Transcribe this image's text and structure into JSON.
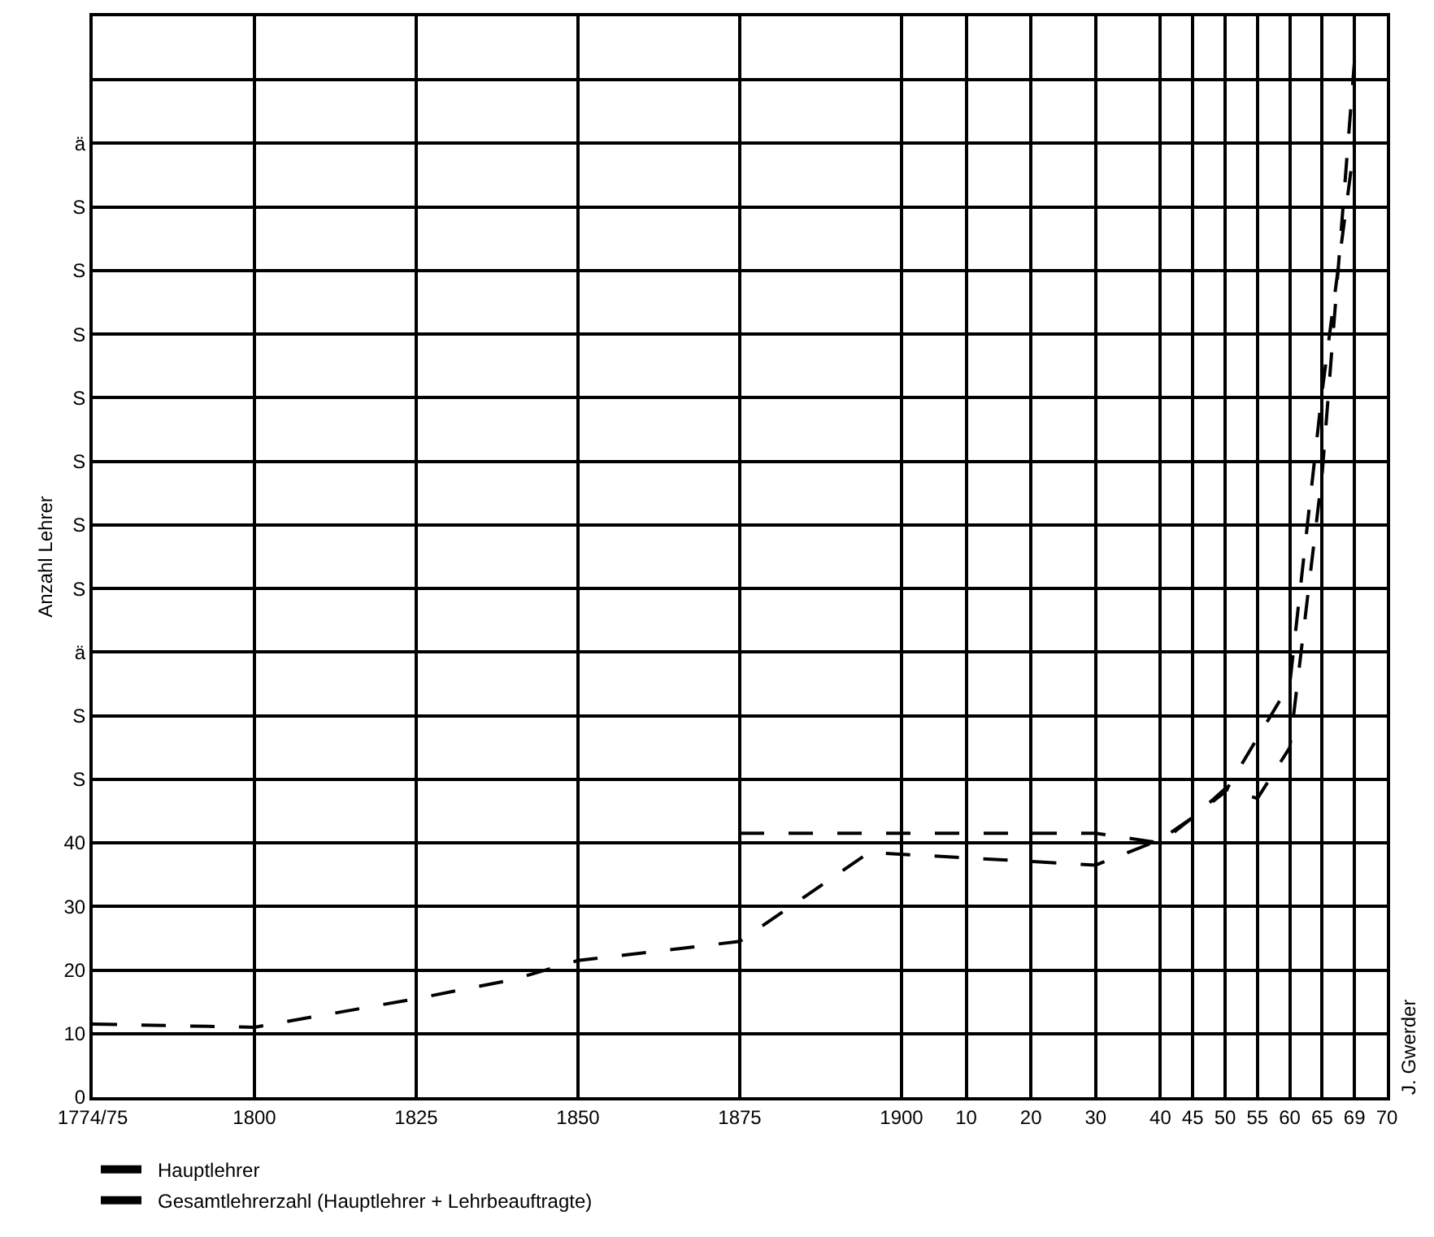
{
  "chart_data": {
    "type": "line",
    "ylabel": "Anzahl Lehrer",
    "categories": [
      "1774/75",
      null,
      null,
      null,
      null,
      "1800",
      null,
      null,
      null,
      null,
      "1825",
      null,
      null,
      null,
      null,
      "1850",
      null,
      null,
      null,
      null,
      "1875",
      null,
      null,
      null,
      null,
      "1900",
      null,
      "10",
      null,
      "20",
      null,
      "30",
      null,
      "40",
      "45",
      "50",
      "55",
      "60",
      "65",
      "69",
      "70"
    ],
    "series": [
      {
        "name": "Hauptlehrer",
        "color": "#000000",
        "values": [
          null,
          null,
          null,
          null,
          null,
          null,
          null,
          null,
          null,
          null,
          null,
          null,
          null,
          null,
          null,
          null,
          null,
          null,
          null,
          null,
          41.5,
          null,
          null,
          null,
          null,
          null,
          null,
          null,
          null,
          null,
          null,
          41.5,
          null,
          40,
          null,
          48,
          null,
          65,
          111,
          150,
          null
        ]
      },
      {
        "name": "Gesamtlehrerzahl (Hauptlehrer + Lehrbeauftragte)",
        "color": "#000000",
        "values": [
          11.5,
          null,
          null,
          null,
          null,
          11,
          null,
          null,
          null,
          null,
          15.5,
          null,
          null,
          18.5,
          null,
          21.5,
          null,
          null,
          null,
          null,
          24.5,
          null,
          null,
          null,
          38.5,
          null,
          null,
          null,
          null,
          null,
          null,
          36.5,
          38.5,
          40.5,
          44,
          48.5,
          47,
          55,
          98,
          163,
          null
        ]
      }
    ],
    "ylim": [
      0,
      170
    ],
    "yticks": [
      0,
      10,
      20,
      30,
      40,
      {
        "value": 50,
        "label": "S"
      },
      {
        "value": 60,
        "label": "S"
      },
      {
        "value": 70,
        "label": "ä"
      },
      {
        "value": 80,
        "label": "S"
      },
      {
        "value": 90,
        "label": "S"
      },
      {
        "value": 100,
        "label": "S"
      },
      {
        "value": 110,
        "label": "S"
      },
      {
        "value": 120,
        "label": "S"
      },
      {
        "value": 130,
        "label": "S"
      },
      {
        "value": 140,
        "label": "S"
      },
      {
        "value": 150,
        "label": "ä"
      },
      {
        "value": 160,
        "label": null
      }
    ],
    "grid": true,
    "legend": "bottom left",
    "marker": "none",
    "line_style": "dashed",
    "annotations": [
      "J. Gwerder"
    ]
  }
}
